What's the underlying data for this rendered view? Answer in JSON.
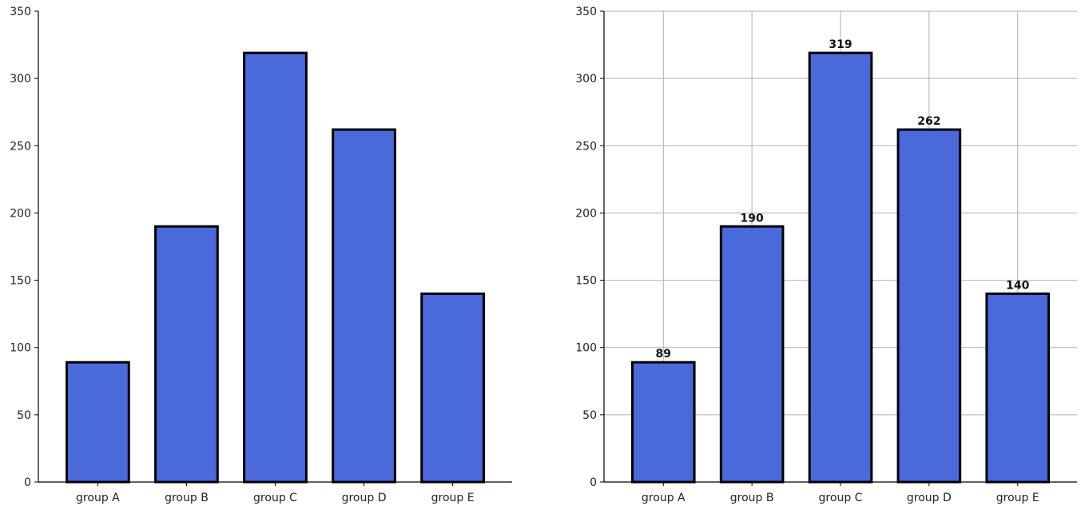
{
  "chart_data": [
    {
      "type": "bar",
      "categories": [
        "group A",
        "group B",
        "group C",
        "group D",
        "group E"
      ],
      "values": [
        89,
        190,
        319,
        262,
        140
      ],
      "ylim": [
        0,
        350
      ],
      "yticks": [
        0,
        50,
        100,
        150,
        200,
        250,
        300,
        350
      ],
      "grid": false,
      "data_labels": false,
      "bar_color": "#4A69DB",
      "edge_color": "#000000"
    },
    {
      "type": "bar",
      "categories": [
        "group A",
        "group B",
        "group C",
        "group D",
        "group E"
      ],
      "values": [
        89,
        190,
        319,
        262,
        140
      ],
      "ylim": [
        0,
        350
      ],
      "yticks": [
        0,
        50,
        100,
        150,
        200,
        250,
        300,
        350
      ],
      "grid": true,
      "data_labels": true,
      "bar_color": "#4A69DB",
      "edge_color": "#000000"
    }
  ]
}
